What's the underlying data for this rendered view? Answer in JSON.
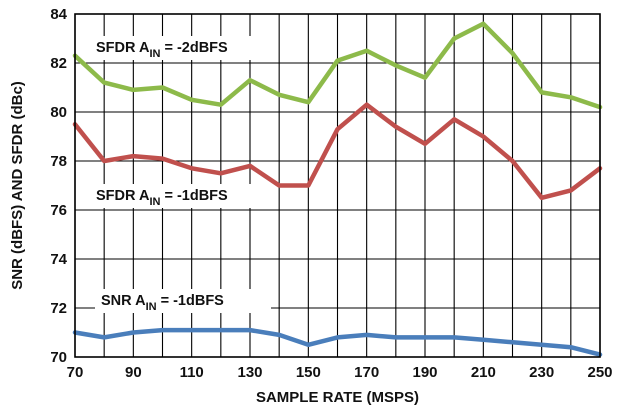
{
  "chart_data": {
    "type": "line",
    "xlabel": "SAMPLE RATE (MSPS)",
    "ylabel": "SNR (dBFS) AND SFDR (dBc)",
    "xlim": [
      70,
      250
    ],
    "ylim": [
      70,
      84
    ],
    "x_ticks": [
      70,
      90,
      110,
      130,
      150,
      170,
      190,
      210,
      230,
      250
    ],
    "y_ticks": [
      70,
      72,
      74,
      76,
      78,
      80,
      82,
      84
    ],
    "grid": true,
    "x": [
      70,
      80,
      90,
      100,
      110,
      120,
      130,
      140,
      150,
      160,
      170,
      180,
      190,
      200,
      210,
      220,
      230,
      240,
      250
    ],
    "series": [
      {
        "name_prefix": "SFDR A",
        "name_subscript": "IN",
        "name_suffix": " = -2dBFS",
        "color": "#8dba4a",
        "values": [
          82.3,
          81.2,
          80.9,
          81.0,
          80.5,
          80.3,
          81.3,
          80.7,
          80.4,
          82.1,
          82.5,
          81.9,
          81.4,
          83.0,
          83.6,
          82.4,
          80.8,
          80.6,
          80.2
        ]
      },
      {
        "name_prefix": "SFDR A",
        "name_subscript": "IN",
        "name_suffix": " = -1dBFS",
        "color": "#c0504d",
        "values": [
          79.5,
          78.0,
          78.2,
          78.1,
          77.7,
          77.5,
          77.8,
          77.0,
          77.0,
          79.3,
          80.3,
          79.4,
          78.7,
          79.7,
          79.0,
          78.0,
          76.5,
          76.8,
          77.7
        ]
      },
      {
        "name_prefix": "SNR A",
        "name_subscript": "IN",
        "name_suffix": " = -1dBFS",
        "color": "#4a7ebb",
        "values": [
          71.0,
          70.8,
          71.0,
          71.1,
          71.1,
          71.1,
          71.1,
          70.9,
          70.5,
          70.8,
          70.9,
          70.8,
          70.8,
          70.8,
          70.7,
          70.6,
          70.5,
          70.4,
          70.1
        ]
      }
    ]
  }
}
